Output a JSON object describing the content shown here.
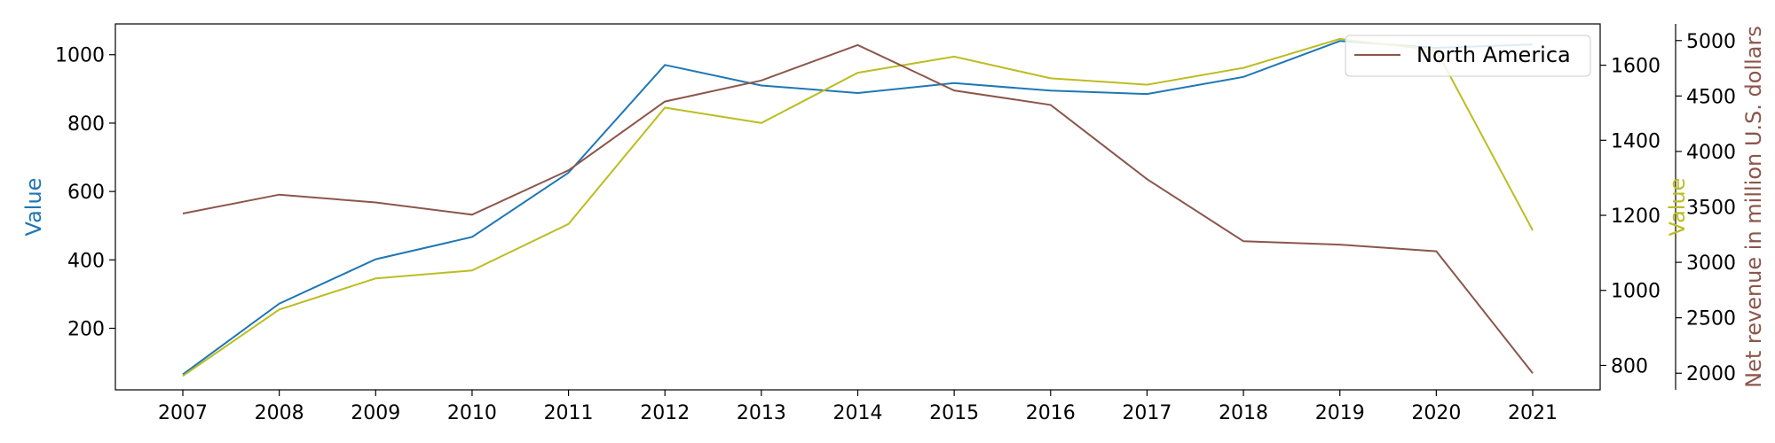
{
  "chart_data": {
    "type": "line",
    "categories": [
      "2007",
      "2008",
      "2009",
      "2010",
      "2011",
      "2012",
      "2013",
      "2014",
      "2015",
      "2016",
      "2017",
      "2018",
      "2019",
      "2020",
      "2021"
    ],
    "axes": {
      "left": {
        "label": "Value",
        "ylim": [
          20,
          1090
        ],
        "ticks": [
          200,
          400,
          600,
          800,
          1000
        ],
        "color": "#1f77b4"
      },
      "right1": {
        "label": "Value",
        "ylim": [
          735,
          1710
        ],
        "ticks": [
          800,
          1000,
          1200,
          1400,
          1600
        ],
        "color": "#bcbd22"
      },
      "right2": {
        "label": "Net revenue in million U.S. dollars",
        "ylim": [
          1850,
          5150
        ],
        "ticks": [
          2000,
          2500,
          3000,
          3500,
          4000,
          4500,
          5000
        ],
        "color": "#8c564b"
      }
    },
    "series": [
      {
        "axis": "left",
        "color": "#1f77b4",
        "values": [
          65,
          272,
          402,
          467,
          655,
          970,
          910,
          888,
          917,
          895,
          885,
          935,
          1040,
          1020,
          1030
        ]
      },
      {
        "axis": "right1",
        "color": "#bcbd22",
        "values": [
          772,
          949,
          1032,
          1053,
          1177,
          1487,
          1446,
          1580,
          1623,
          1565,
          1548,
          1593,
          1670,
          1640,
          1160
        ]
      },
      {
        "name": "North America",
        "axis": "right2",
        "color": "#8c564b",
        "values": [
          3440,
          3610,
          3540,
          3430,
          3830,
          4450,
          4640,
          4960,
          4550,
          4420,
          3750,
          3190,
          3160,
          3100,
          2000
        ]
      }
    ],
    "legend": {
      "position": "top-right",
      "entries": [
        "North America"
      ]
    },
    "grid": false
  }
}
